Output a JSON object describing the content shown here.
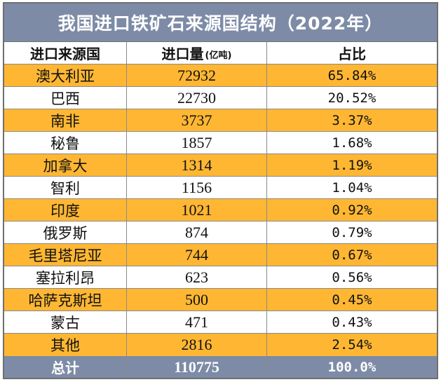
{
  "title": "我国进口铁矿石来源国结构（2022年）",
  "headers": {
    "country": "进口来源国",
    "amount": "进口量",
    "amount_unit": "(亿吨)",
    "share": "占比"
  },
  "rows": [
    {
      "country": "澳大利亚",
      "amount": "72932",
      "share": "65.84%"
    },
    {
      "country": "巴西",
      "amount": "22730",
      "share": "20.52%"
    },
    {
      "country": "南非",
      "amount": "3737",
      "share": "3.37%"
    },
    {
      "country": "秘鲁",
      "amount": "1857",
      "share": "1.68%"
    },
    {
      "country": "加拿大",
      "amount": "1314",
      "share": "1.19%"
    },
    {
      "country": "智利",
      "amount": "1156",
      "share": "1.04%"
    },
    {
      "country": "印度",
      "amount": "1021",
      "share": "0.92%"
    },
    {
      "country": "俄罗斯",
      "amount": "874",
      "share": "0.79%"
    },
    {
      "country": "毛里塔尼亚",
      "amount": "744",
      "share": "0.67%"
    },
    {
      "country": "塞拉利昂",
      "amount": "623",
      "share": "0.56%"
    },
    {
      "country": "哈萨克斯坦",
      "amount": "500",
      "share": "0.45%"
    },
    {
      "country": "蒙古",
      "amount": "471",
      "share": "0.43%"
    },
    {
      "country": "其他",
      "amount": "2816",
      "share": "2.54%"
    }
  ],
  "total": {
    "label": "总计",
    "amount": "110775",
    "share": "100.0%"
  },
  "colors": {
    "header_band": "#7d8ba6",
    "highlight_row": "#ffb733",
    "plain_row": "#ffffff"
  },
  "chart_data": {
    "type": "table",
    "title": "我国进口铁矿石来源国结构（2022年）",
    "columns": [
      "进口来源国",
      "进口量(亿吨)",
      "占比"
    ],
    "categories": [
      "澳大利亚",
      "巴西",
      "南非",
      "秘鲁",
      "加拿大",
      "智利",
      "印度",
      "俄罗斯",
      "毛里塔尼亚",
      "塞拉利昂",
      "哈萨克斯坦",
      "蒙古",
      "其他"
    ],
    "series": [
      {
        "name": "进口量",
        "values": [
          72932,
          22730,
          3737,
          1857,
          1314,
          1156,
          1021,
          874,
          744,
          623,
          500,
          471,
          2816
        ]
      },
      {
        "name": "占比",
        "values": [
          65.84,
          20.52,
          3.37,
          1.68,
          1.19,
          1.04,
          0.92,
          0.79,
          0.67,
          0.56,
          0.45,
          0.43,
          2.54
        ]
      }
    ],
    "total": {
      "label": "总计",
      "amount": 110775,
      "share": 100.0
    }
  }
}
